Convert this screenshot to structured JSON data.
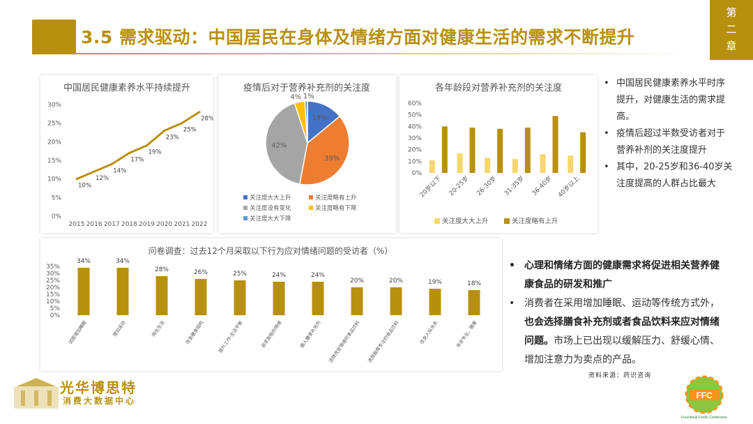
{
  "header": {
    "title": "3.5 需求驱动：中国居民在身体及情绪方面对健康生活的需求不断提升",
    "chapter_chars": [
      "第",
      "二",
      "章"
    ]
  },
  "colors": {
    "brand_gold": "#B8900F",
    "light_gold": "#F5D76E",
    "pie_blue": "#4472C4",
    "pie_orange": "#ED7D31",
    "pie_gray": "#A5A5A5",
    "pie_yellow": "#FFC000",
    "pie_lightblue": "#5B9BD5"
  },
  "chart_data": [
    {
      "id": "literacy",
      "type": "line",
      "title": "中国居民健康素养水平持续提升",
      "x": [
        "2015",
        "2016",
        "2017",
        "2018",
        "2019",
        "2020",
        "2021",
        "2022"
      ],
      "values": [
        10,
        12,
        14,
        17,
        19,
        23,
        25,
        28
      ],
      "labels": [
        "10%",
        "12%",
        "14%",
        "17%",
        "19%",
        "23%",
        "25%",
        "28%"
      ],
      "yticks": [
        "0%",
        "5%",
        "10%",
        "15%",
        "20%",
        "25%",
        "30%"
      ],
      "ylim": [
        0,
        30
      ]
    },
    {
      "id": "pie",
      "type": "pie",
      "title": "疫情后对于营养补充剂的关注度",
      "slices": [
        {
          "name": "关注度大大上升",
          "value": 14,
          "label": "14%",
          "color": "#4472C4"
        },
        {
          "name": "关注度略有上升",
          "value": 39,
          "label": "39%",
          "color": "#ED7D31"
        },
        {
          "name": "关注度没有变化",
          "value": 42,
          "label": "42%",
          "color": "#A5A5A5"
        },
        {
          "name": "关注度略有下降",
          "value": 4,
          "label": "4%",
          "color": "#FFC000"
        },
        {
          "name": "关注度大大下降",
          "value": 1,
          "label": "1%",
          "color": "#5B9BD5"
        }
      ]
    },
    {
      "id": "age",
      "type": "bar",
      "title": "各年龄段对营养补充剂的关注度",
      "categories": [
        "20岁以下",
        "20-25岁",
        "26-30岁",
        "31-35岁",
        "36-40岁",
        "40岁以上"
      ],
      "series": [
        {
          "name": "关注度大大上升",
          "values": [
            11,
            17,
            13,
            12,
            16,
            15
          ],
          "color": "#F5D76E"
        },
        {
          "name": "关注度略有上升",
          "values": [
            40,
            39,
            38,
            39,
            49,
            35
          ],
          "color": "#B8900F"
        }
      ],
      "yticks": [
        "0%",
        "10%",
        "20%",
        "30%",
        "40%",
        "50%",
        "60%"
      ],
      "ylim": [
        0,
        60
      ]
    },
    {
      "id": "survey",
      "type": "bar",
      "title": "问卷调查：过去12个月采取以下行为应对情绪问题的受访者（%）",
      "categories": [
        "试图增加睡眠",
        "增加运动",
        "简化生活",
        "改变膳食结构",
        "提升工作-生活平衡",
        "追求股极的情绪",
        "摄入膳食补充剂",
        "选择改变情绪的食品饮料",
        "选择能帮专注的食品饮料",
        "改变人际关系",
        "寻求专业、健康"
      ],
      "values": [
        34,
        34,
        28,
        26,
        25,
        24,
        24,
        20,
        20,
        19,
        18
      ],
      "labels": [
        "34%",
        "34%",
        "28%",
        "26%",
        "25%",
        "24%",
        "24%",
        "20%",
        "20%",
        "19%",
        "18%"
      ],
      "yticks": [
        "0%",
        "5%",
        "10%",
        "15%",
        "20%",
        "25%",
        "30%",
        "35%"
      ],
      "ylim": [
        0,
        35
      ]
    }
  ],
  "right_bullets": [
    "中国居民健康素养水平时序提升，对健康生活的需求提高。",
    "疫情后超过半数受访者对于营养补剂的关注度提升",
    "其中，20-25岁和36-40岁关注度提高的人群占比最大"
  ],
  "bottom": {
    "point1": "心理和情绪方面的健康需求将促进相关营养健康食品的研发和推广",
    "point2_a": "消费者在采用增加睡眠、运动等传统方式外，",
    "point2_b": "也会选择膳食补充剂或者食品饮料来应对情绪问题。",
    "point2_c": "市场上已出现以缓解压力、舒缓心情、增加注意力为卖点的产品。",
    "source": "资料来源：药识咨询"
  },
  "logo_left": {
    "name": "光华博思特",
    "sub": "消费大数据中心"
  },
  "logo_right": {
    "text": "FFC",
    "sub": "Functional Foods Conference"
  }
}
